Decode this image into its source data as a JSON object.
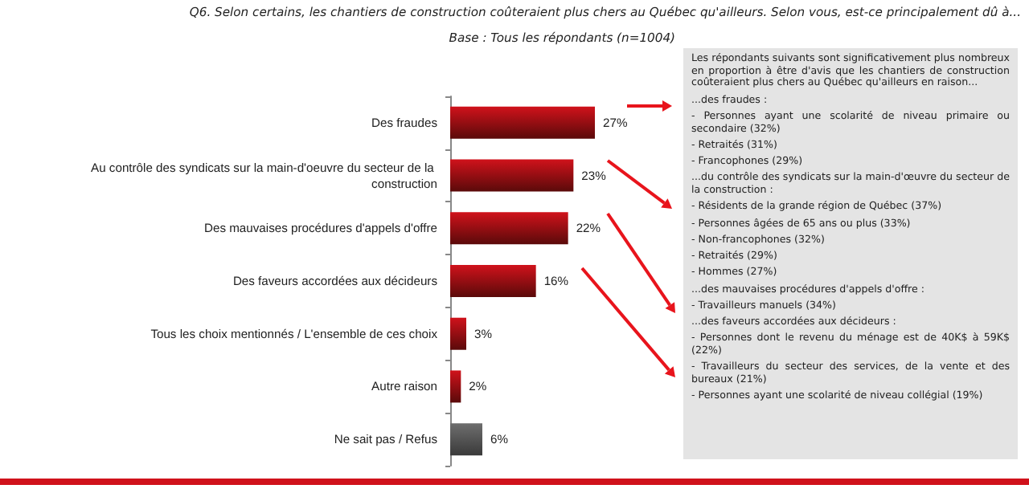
{
  "chart_data": {
    "type": "bar",
    "orientation": "horizontal",
    "title": "Q6. Selon certains, les chantiers de construction coûteraient plus chers au Québec qu'ailleurs. Selon vous, est-ce principalement dû à...",
    "subtitle": "Base : Tous les répondants (n=1004)",
    "categories": [
      "Des fraudes",
      "Au contrôle des syndicats sur la main-d'oeuvre du secteur de la construction",
      "Des mauvaises procédures d'appels d'offre",
      "Des faveurs accordées aux décideurs",
      "Tous les choix mentionnés / L'ensemble de ces choix",
      "Autre raison",
      "Ne sait pas / Refus"
    ],
    "values": [
      27,
      23,
      22,
      16,
      3,
      2,
      6
    ],
    "value_labels": [
      "27%",
      "23%",
      "22%",
      "16%",
      "3%",
      "2%",
      "6%"
    ],
    "colors": [
      "#d0121b",
      "#d0121b",
      "#d0121b",
      "#d0121b",
      "#d0121b",
      "#d0121b",
      "#6e6e6e"
    ],
    "annotations": [
      "Les répondants suivants sont significativement plus nombreux en proportion à être d'avis que les chantiers de construction coûteraient plus chers au Québec qu'ailleurs en raison...",
      "...des fraudes :",
      "- Personnes ayant une scolarité de niveau primaire ou secondaire (32%)",
      "- Retraités (31%)",
      "- Francophones (29%)",
      "...du contrôle des syndicats sur la main-d'œuvre du secteur de la construction :",
      "- Résidents de la grande région de Québec (37%)",
      "- Personnes âgées de 65 ans ou plus (33%)",
      "- Non-francophones (32%)",
      "- Retraités (29%)",
      "- Hommes (27%)",
      "...des mauvaises procédures d'appels d'offre :",
      "- Travailleurs manuels (34%)",
      "...des faveurs accordées aux décideurs :",
      "- Personnes dont le revenu du ménage est de 40K$ à 59K$ (22%)",
      "- Travailleurs du secteur des services, de la vente et des bureaux (21%)",
      "- Personnes ayant une scolarité de niveau collégial (19%)"
    ]
  }
}
